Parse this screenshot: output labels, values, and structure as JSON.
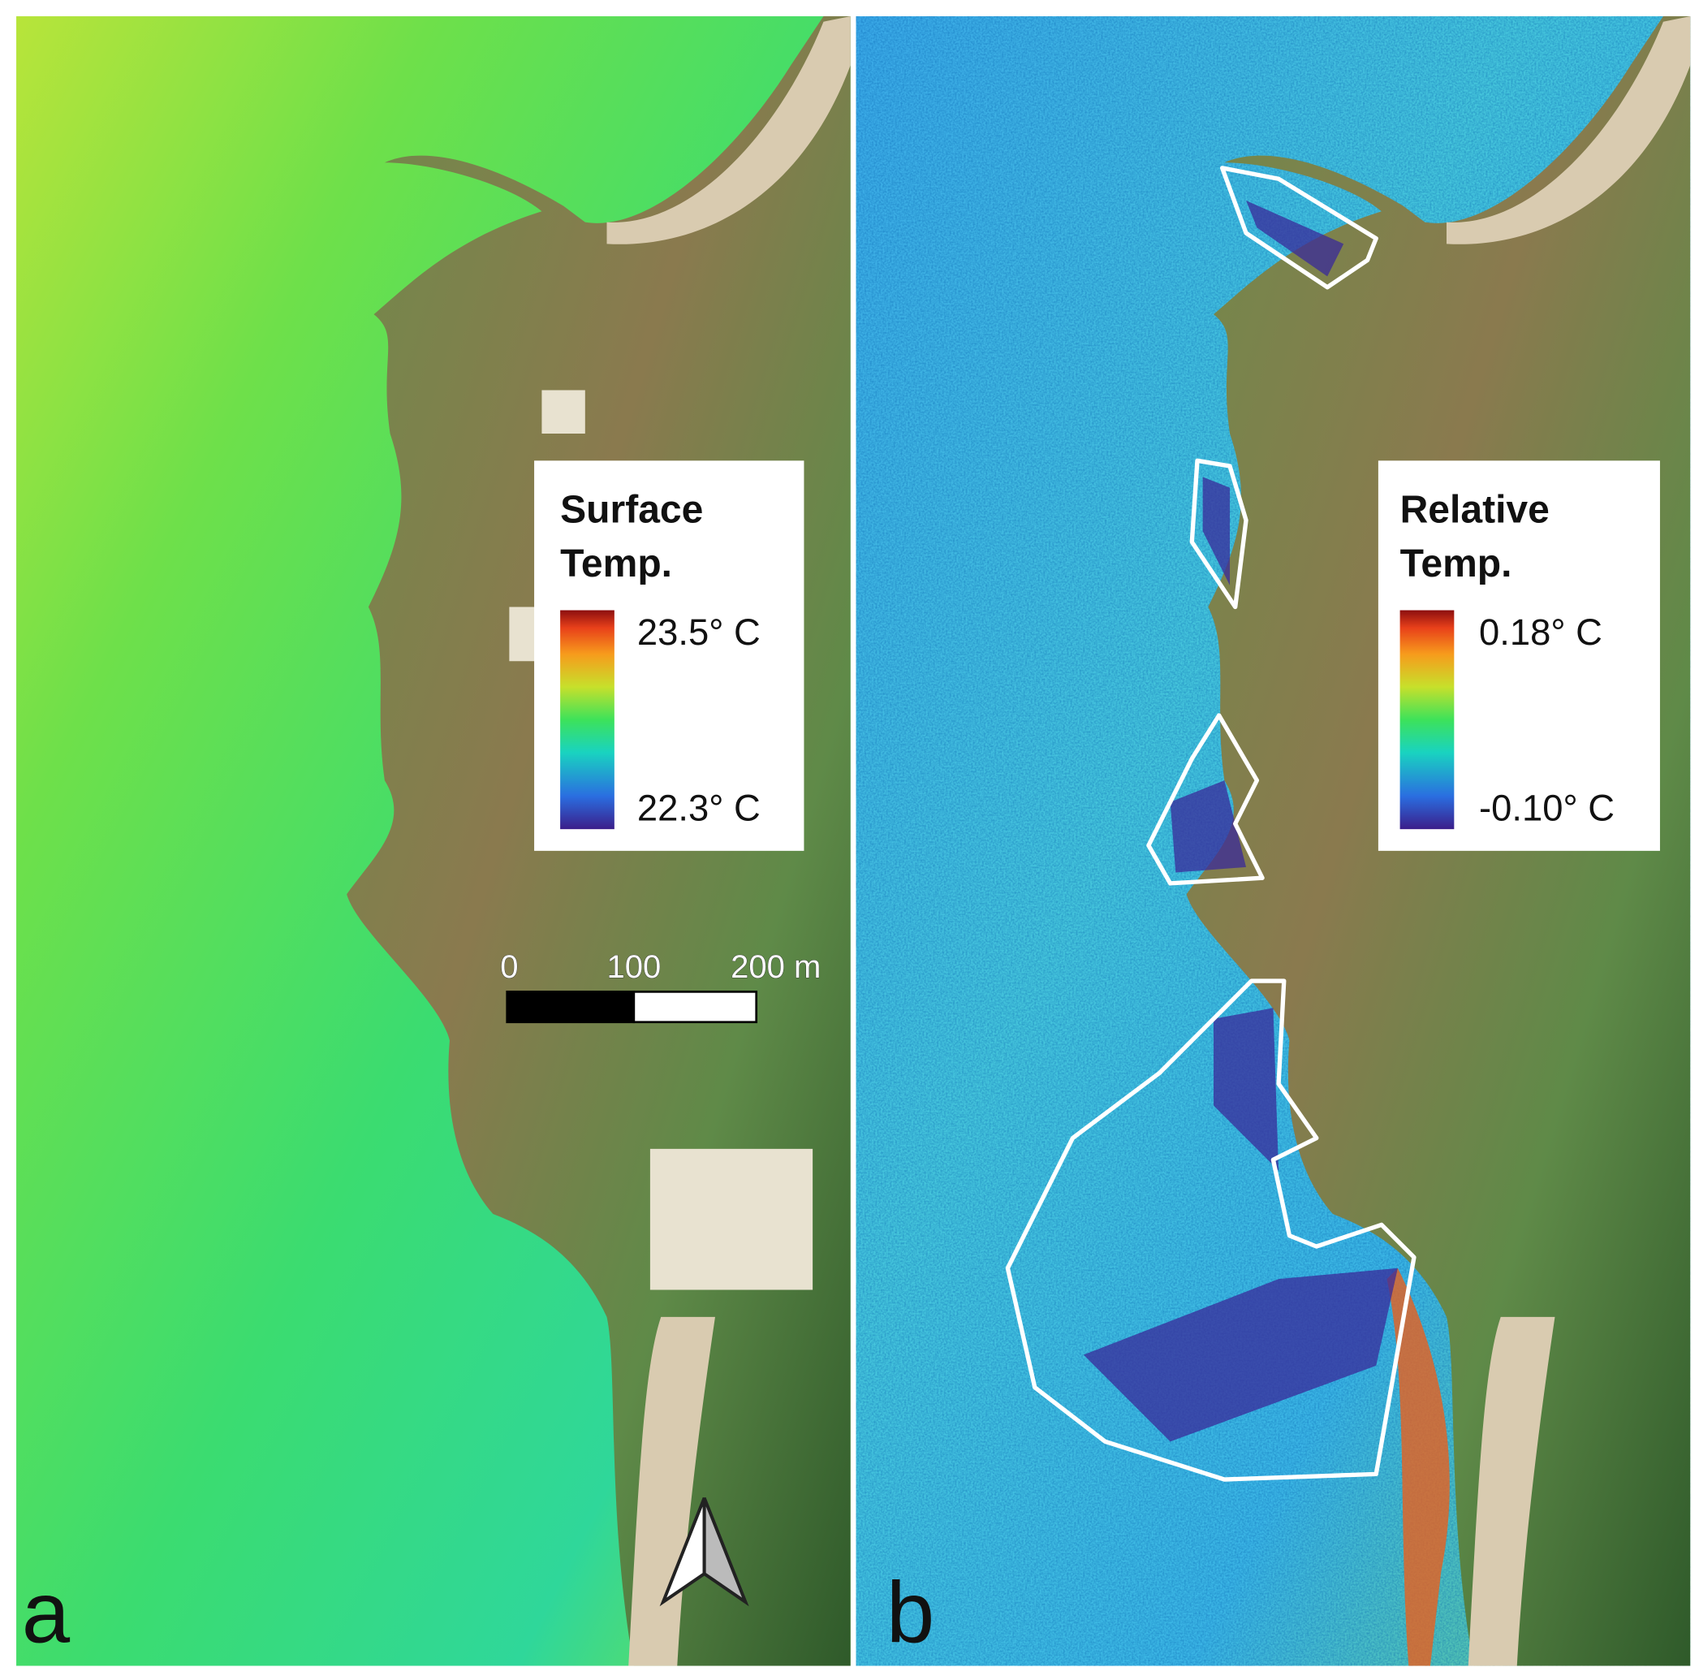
{
  "panels": [
    {
      "label": "a",
      "legend": {
        "title": [
          "Surface",
          "Temp."
        ],
        "max": "23.5° C",
        "min": "22.3° C"
      }
    },
    {
      "label": "b",
      "legend": {
        "title": [
          "Relative",
          "Temp."
        ],
        "max": "0.18° C",
        "min": "-0.10° C"
      }
    }
  ],
  "scale_bar": {
    "labels": [
      "0",
      "100",
      "200 m"
    ]
  }
}
